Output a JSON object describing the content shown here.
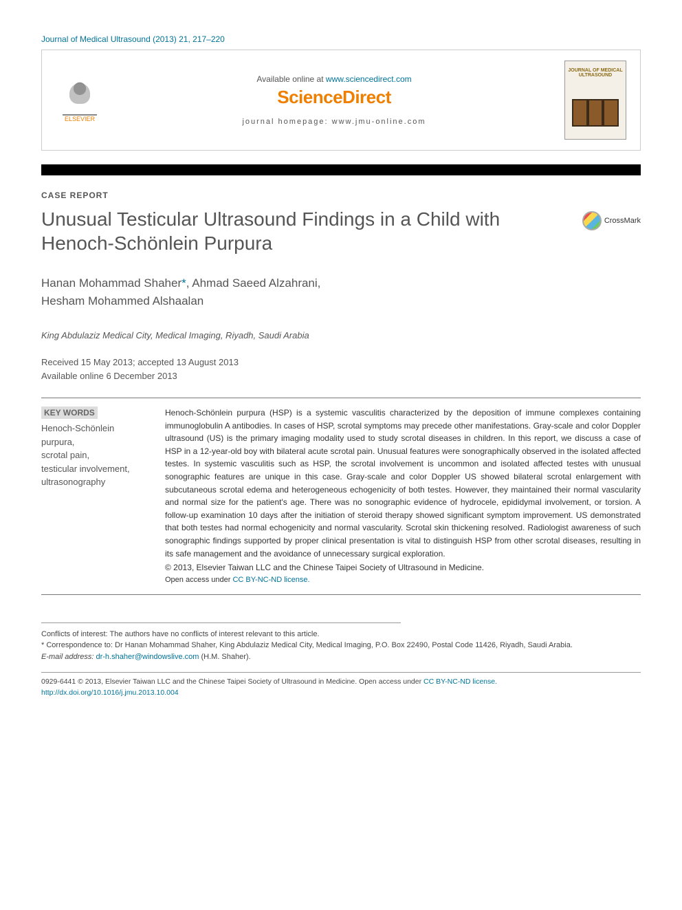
{
  "header": {
    "journal_ref": "Journal of Medical Ultrasound (2013) 21, 217–220",
    "available_prefix": "Available online at ",
    "available_url": "www.sciencedirect.com",
    "sd_logo_text": "ScienceDirect",
    "homepage_label": "journal homepage: www.jmu-online.com",
    "elsevier_label": "ELSEVIER",
    "cover_title": "JOURNAL OF MEDICAL ULTRASOUND"
  },
  "article": {
    "section_label": "CASE REPORT",
    "title": "Unusual Testicular Ultrasound Findings in a Child with Henoch-Schönlein Purpura",
    "crossmark_label": "CrossMark",
    "authors_line1": "Hanan Mohammad Shaher",
    "corr_mark": "*",
    "authors_line1b": ", Ahmad Saeed Alzahrani,",
    "authors_line2": "Hesham Mohammed Alshaalan",
    "affiliation": "King Abdulaziz Medical City, Medical Imaging, Riyadh, Saudi Arabia",
    "dates_line1": "Received 15 May 2013; accepted 13 August 2013",
    "dates_line2": "Available online 6 December 2013"
  },
  "keywords": {
    "label": "KEY WORDS",
    "items": "Henoch-Schönlein purpura,\nscrotal pain,\ntesticular involvement,\nultrasonography"
  },
  "abstract": {
    "body": "Henoch-Schönlein purpura (HSP) is a systemic vasculitis characterized by the deposition of immune complexes containing immunoglobulin A antibodies. In cases of HSP, scrotal symptoms may precede other manifestations. Gray-scale and color Doppler ultrasound (US) is the primary imaging modality used to study scrotal diseases in children. In this report, we discuss a case of HSP in a 12-year-old boy with bilateral acute scrotal pain. Unusual features were sonographically observed in the isolated affected testes. In systemic vasculitis such as HSP, the scrotal involvement is uncommon and isolated affected testes with unusual sonographic features are unique in this case. Gray-scale and color Doppler US showed bilateral scrotal enlargement with subcutaneous scrotal edema and heterogeneous echogenicity of both testes. However, they maintained their normal vascularity and normal size for the patient's age. There was no sonographic evidence of hydrocele, epididymal involvement, or torsion. A follow-up examination 10 days after the initiation of steroid therapy showed significant symptom improvement. US demonstrated that both testes had normal echogenicity and normal vascularity. Scrotal skin thickening resolved. Radiologist awareness of such sonographic findings supported by proper clinical presentation is vital to distinguish HSP from other scrotal diseases, resulting in its safe management and the avoidance of unnecessary surgical exploration.",
    "copyright": "© 2013, Elsevier Taiwan LLC and the Chinese Taipei Society of Ultrasound in Medicine.",
    "license_prefix": "Open access under ",
    "license_link": "CC BY-NC-ND license."
  },
  "footnotes": {
    "conflicts": "Conflicts of interest: The authors have no conflicts of interest relevant to this article.",
    "corr_mark": "* ",
    "corr_text": "Correspondence to: Dr Hanan Mohammad Shaher, King Abdulaziz Medical City, Medical Imaging, P.O. Box 22490, Postal Code 11426, Riyadh, Saudi Arabia.",
    "email_label": "E-mail address: ",
    "email": "dr-h.shaher@windowslive.com",
    "email_suffix": " (H.M. Shaher)."
  },
  "issn": {
    "line1_a": "0929-6441 © 2013, Elsevier Taiwan LLC and the Chinese Taipei Society of Ultrasound in Medicine. ",
    "line1_b": "Open access under ",
    "line1_link": "CC BY-NC-ND license.",
    "doi": "http://dx.doi.org/10.1016/j.jmu.2013.10.004"
  },
  "colors": {
    "link": "#007398",
    "orange": "#ee7f00",
    "text": "#555555",
    "border": "#cccccc"
  }
}
